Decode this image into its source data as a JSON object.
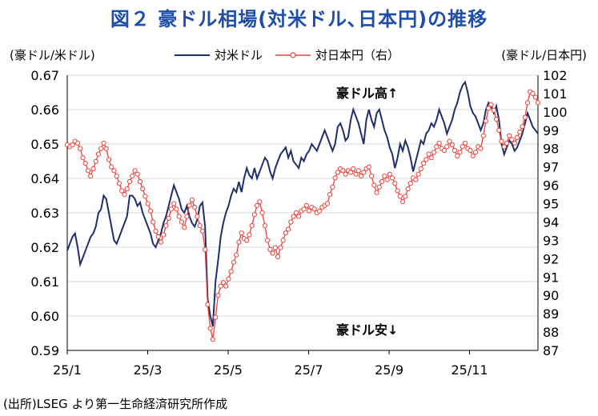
{
  "title": "図２ 豪ドル相場(対米ドル､日本円)の推移",
  "source": "(出所)LSEG より第一生命経済研究所作成",
  "colors": {
    "usd": "#1f2f6b",
    "jpy": "#e8433c",
    "grid": "#d9d9d9",
    "axis": "#000000"
  },
  "chart_data": {
    "type": "line",
    "ylabel_left": "(豪ドル/米ドル)",
    "ylabel_right": "(豪ドル/日本円)",
    "xticks": [
      "25/1",
      "25/3",
      "25/5",
      "25/7",
      "25/9",
      "25/11"
    ],
    "ylim_left": [
      0.59,
      0.67
    ],
    "ylim_right": [
      87,
      102
    ],
    "yticks_left": [
      "0.59",
      "0.60",
      "0.61",
      "0.62",
      "0.63",
      "0.64",
      "0.65",
      "0.66",
      "0.67"
    ],
    "yticks_right": [
      "87",
      "88",
      "89",
      "90",
      "91",
      "92",
      "93",
      "94",
      "95",
      "96",
      "97",
      "98",
      "99",
      "100",
      "101",
      "102"
    ],
    "grid": "horizontal",
    "annotations": {
      "top": "豪ドル高↑",
      "bottom": "豪ドル安↓"
    },
    "series": [
      {
        "name": "対米ドル",
        "axis": "left",
        "values": [
          0.619,
          0.621,
          0.623,
          0.624,
          0.62,
          0.615,
          0.617,
          0.619,
          0.621,
          0.623,
          0.624,
          0.626,
          0.63,
          0.631,
          0.635,
          0.634,
          0.63,
          0.626,
          0.622,
          0.621,
          0.623,
          0.625,
          0.627,
          0.629,
          0.635,
          0.635,
          0.634,
          0.632,
          0.633,
          0.63,
          0.628,
          0.626,
          0.624,
          0.621,
          0.62,
          0.622,
          0.624,
          0.627,
          0.629,
          0.632,
          0.635,
          0.638,
          0.636,
          0.634,
          0.631,
          0.63,
          0.632,
          0.629,
          0.627,
          0.626,
          0.628,
          0.632,
          0.633,
          0.626,
          0.605,
          0.6,
          0.597,
          0.61,
          0.616,
          0.623,
          0.627,
          0.63,
          0.632,
          0.635,
          0.637,
          0.636,
          0.639,
          0.636,
          0.64,
          0.643,
          0.641,
          0.64,
          0.643,
          0.64,
          0.642,
          0.644,
          0.646,
          0.645,
          0.642,
          0.64,
          0.643,
          0.645,
          0.647,
          0.648,
          0.649,
          0.646,
          0.648,
          0.645,
          0.644,
          0.643,
          0.646,
          0.645,
          0.647,
          0.648,
          0.65,
          0.649,
          0.648,
          0.65,
          0.652,
          0.654,
          0.652,
          0.65,
          0.648,
          0.65,
          0.655,
          0.656,
          0.654,
          0.651,
          0.652,
          0.657,
          0.66,
          0.658,
          0.656,
          0.653,
          0.65,
          0.657,
          0.66,
          0.657,
          0.655,
          0.659,
          0.66,
          0.657,
          0.654,
          0.652,
          0.649,
          0.647,
          0.643,
          0.646,
          0.65,
          0.648,
          0.651,
          0.649,
          0.646,
          0.642,
          0.645,
          0.648,
          0.651,
          0.65,
          0.653,
          0.654,
          0.656,
          0.655,
          0.657,
          0.66,
          0.658,
          0.656,
          0.653,
          0.655,
          0.657,
          0.66,
          0.662,
          0.665,
          0.667,
          0.668,
          0.665,
          0.661,
          0.659,
          0.658,
          0.656,
          0.654,
          0.656,
          0.66,
          0.662,
          0.661,
          0.659,
          0.661,
          0.657,
          0.65,
          0.647,
          0.649,
          0.651,
          0.65,
          0.648,
          0.649,
          0.651,
          0.653,
          0.656,
          0.659,
          0.657,
          0.655,
          0.654,
          0.653
        ]
      },
      {
        "name": "対日本円（右）",
        "axis": "right",
        "values": [
          98.2,
          98.1,
          98.2,
          98.4,
          98.3,
          98.0,
          97.5,
          97.2,
          96.8,
          96.5,
          96.9,
          97.3,
          97.7,
          98.0,
          98.3,
          98.0,
          97.4,
          97.0,
          96.8,
          96.5,
          96.1,
          95.7,
          95.5,
          95.8,
          96.2,
          96.5,
          96.8,
          96.6,
          96.2,
          95.8,
          95.4,
          95.0,
          94.6,
          94.0,
          93.5,
          93.2,
          92.9,
          93.3,
          93.8,
          94.2,
          94.7,
          95.0,
          94.7,
          94.3,
          94.0,
          93.7,
          94.3,
          94.9,
          95.2,
          94.8,
          94.3,
          93.8,
          93.5,
          92.5,
          89.5,
          88.2,
          87.6,
          88.8,
          90.0,
          90.5,
          90.7,
          90.5,
          90.9,
          91.3,
          91.8,
          92.2,
          92.9,
          93.4,
          93.1,
          93.0,
          93.3,
          93.8,
          94.4,
          94.9,
          95.1,
          94.5,
          93.8,
          93.0,
          92.5,
          92.3,
          92.6,
          92.1,
          92.6,
          93.0,
          93.4,
          93.6,
          94.0,
          94.3,
          94.5,
          94.3,
          94.6,
          94.7,
          94.9,
          94.6,
          94.8,
          94.7,
          94.5,
          94.6,
          94.8,
          94.9,
          95.0,
          95.5,
          95.9,
          96.4,
          96.7,
          96.9,
          96.8,
          96.6,
          96.8,
          96.7,
          96.9,
          96.6,
          96.8,
          96.5,
          96.7,
          96.9,
          97.0,
          96.5,
          96.0,
          95.6,
          95.9,
          96.2,
          96.5,
          96.3,
          96.6,
          96.4,
          96.1,
          95.7,
          95.4,
          95.1,
          95.4,
          95.8,
          96.1,
          96.4,
          96.3,
          96.6,
          96.9,
          97.2,
          97.4,
          97.7,
          97.5,
          97.8,
          98.1,
          98.3,
          98.0,
          97.9,
          98.1,
          98.4,
          98.2,
          97.9,
          97.6,
          97.8,
          98.1,
          98.3,
          98.0,
          97.9,
          97.6,
          97.8,
          98.1,
          98.0,
          98.7,
          99.5,
          100.2,
          100.4,
          100.1,
          99.6,
          99.0,
          98.4,
          98.1,
          98.3,
          98.7,
          98.5,
          98.3,
          98.6,
          98.9,
          99.2,
          99.7,
          100.5,
          101.1,
          101.0,
          100.8,
          100.5
        ]
      }
    ]
  }
}
